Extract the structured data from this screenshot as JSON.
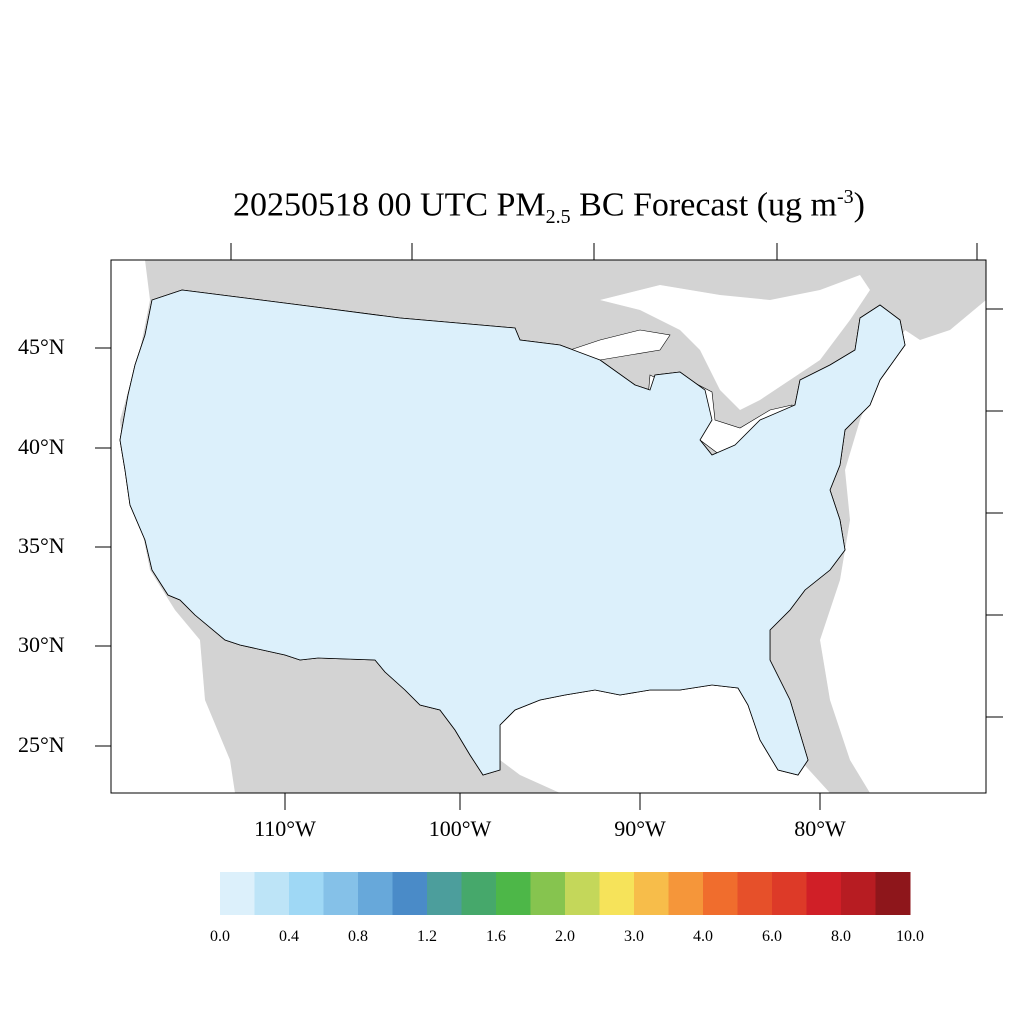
{
  "title": {
    "prefix": "20250518 00 UTC PM",
    "sub": "2.5",
    "middle": " BC Forecast (ug m",
    "sup": "-3",
    "suffix": ")"
  },
  "latitude_labels": [
    "45°N",
    "40°N",
    "35°N",
    "30°N",
    "25°N"
  ],
  "longitude_labels": [
    "110°W",
    "100°W",
    "90°W",
    "80°W"
  ],
  "colorbar": {
    "colors": [
      "#dcf0fb",
      "#bde4f7",
      "#9fd8f5",
      "#85c1e8",
      "#67a8da",
      "#4a8bc8",
      "#4c9e9c",
      "#46a86b",
      "#4db748",
      "#86c44f",
      "#c4d75a",
      "#f6e35a",
      "#f7bd4a",
      "#f5963a",
      "#f06d2d",
      "#e6502a",
      "#dd3a28",
      "#d01f27",
      "#b71c22",
      "#8e161b"
    ],
    "labels": [
      "0.0",
      "0.4",
      "0.8",
      "1.2",
      "1.6",
      "2.0",
      "3.0",
      "4.0",
      "6.0",
      "8.0",
      "10.0"
    ]
  },
  "map_colors": {
    "land_gray": "#d3d3d3",
    "water": "#ffffff",
    "county_base": "#dcf0fb",
    "border": "#000000"
  }
}
